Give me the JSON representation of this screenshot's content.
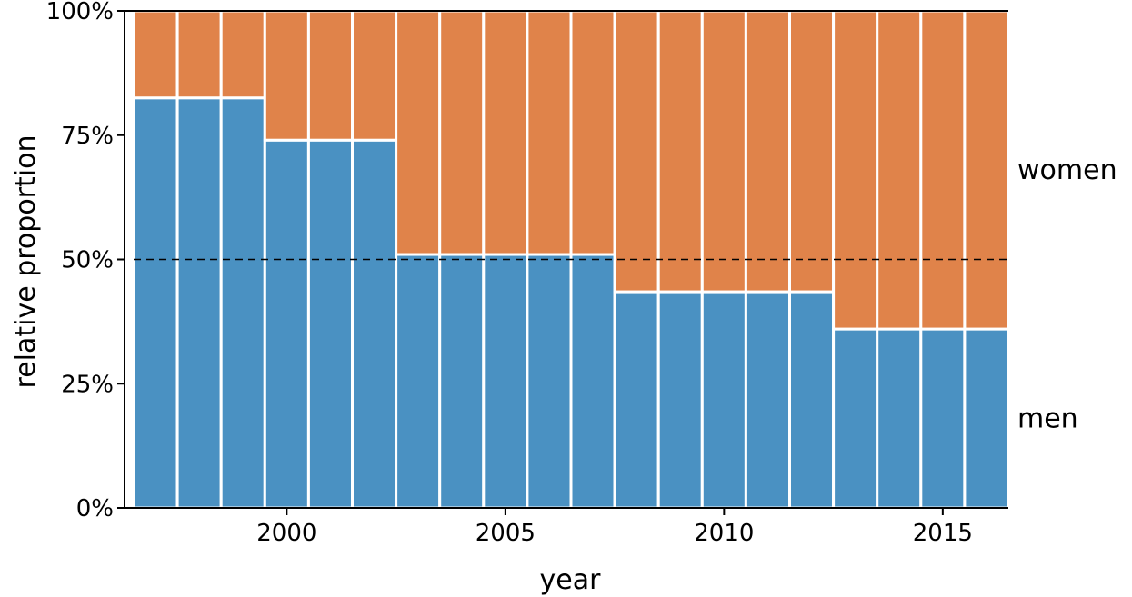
{
  "chart_data": {
    "type": "bar",
    "stacked": "percent",
    "x": [
      1997,
      1998,
      1999,
      2000,
      2001,
      2002,
      2003,
      2004,
      2005,
      2006,
      2007,
      2008,
      2009,
      2010,
      2011,
      2012,
      2013,
      2014,
      2015,
      2016
    ],
    "series": [
      {
        "name": "men",
        "color": "#4a91c2",
        "values": [
          0.825,
          0.825,
          0.825,
          0.74,
          0.74,
          0.74,
          0.51,
          0.51,
          0.51,
          0.51,
          0.51,
          0.435,
          0.435,
          0.435,
          0.435,
          0.435,
          0.36,
          0.36,
          0.36,
          0.36
        ]
      },
      {
        "name": "women",
        "color": "#e0834a",
        "values": [
          0.175,
          0.175,
          0.175,
          0.26,
          0.26,
          0.26,
          0.49,
          0.49,
          0.49,
          0.49,
          0.49,
          0.565,
          0.565,
          0.565,
          0.565,
          0.565,
          0.64,
          0.64,
          0.64,
          0.64
        ]
      }
    ],
    "xlabel": "year",
    "ylabel": "relative proportion",
    "xticks": [
      2000,
      2005,
      2010,
      2015
    ],
    "yticks": [
      0,
      0.25,
      0.5,
      0.75,
      1.0
    ],
    "ytick_labels": [
      "0%",
      "25%",
      "50%",
      "75%",
      "100%"
    ],
    "ylim": [
      0,
      1
    ],
    "reference_line": {
      "y": 0.5,
      "style": "dashed"
    },
    "legend": "direct labels at right",
    "grid": false
  }
}
